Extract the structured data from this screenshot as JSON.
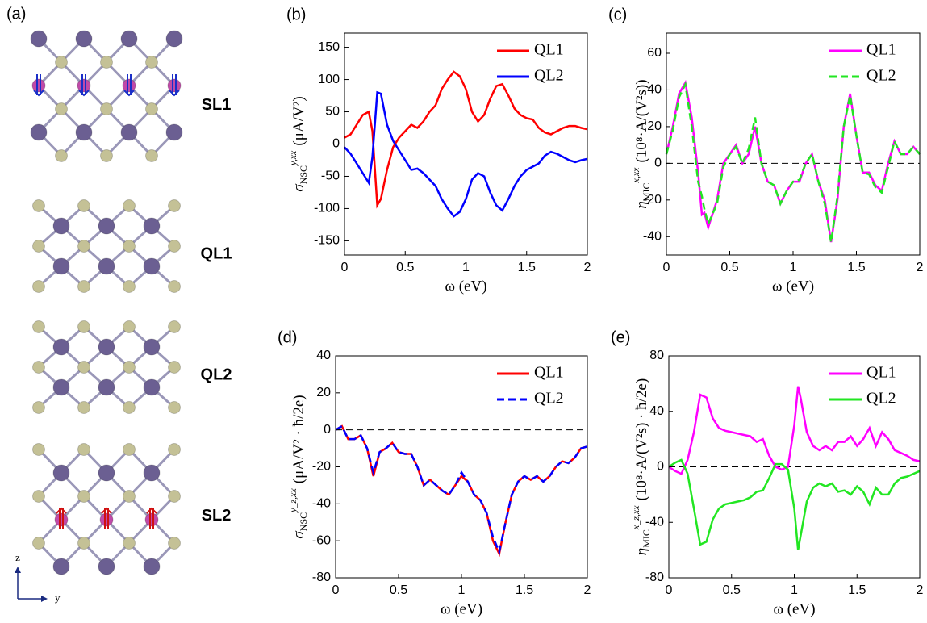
{
  "structure": {
    "panel_label": "(a)",
    "layers": [
      "SL1",
      "QL1",
      "QL2",
      "SL2"
    ],
    "axes": [
      "z",
      "y"
    ]
  },
  "chart_data": [
    {
      "type": "line",
      "label": "(b)",
      "xlabel": "ω (eV)",
      "ylabel": {
        "symbol": "σ",
        "sub": "NSC",
        "sup": "y,xx",
        "unit": "(μA/V²)"
      },
      "x": [
        0,
        0.05,
        0.1,
        0.15,
        0.2,
        0.23,
        0.27,
        0.3,
        0.35,
        0.4,
        0.45,
        0.5,
        0.55,
        0.6,
        0.65,
        0.7,
        0.75,
        0.8,
        0.85,
        0.9,
        0.95,
        1,
        1.05,
        1.1,
        1.15,
        1.2,
        1.25,
        1.3,
        1.35,
        1.4,
        1.45,
        1.5,
        1.55,
        1.6,
        1.65,
        1.7,
        1.75,
        1.8,
        1.85,
        1.9,
        1.95,
        2
      ],
      "series": [
        {
          "name": "QL1",
          "color": "#ff0000",
          "dash": false,
          "values": [
            10,
            15,
            30,
            45,
            50,
            20,
            -95,
            -85,
            -40,
            -5,
            10,
            20,
            30,
            25,
            35,
            50,
            60,
            85,
            100,
            112,
            105,
            85,
            50,
            35,
            45,
            70,
            90,
            93,
            75,
            55,
            45,
            40,
            38,
            25,
            18,
            15,
            20,
            25,
            28,
            28,
            25,
            23
          ]
        },
        {
          "name": "QL2",
          "color": "#0000ff",
          "dash": false,
          "values": [
            -5,
            -15,
            -30,
            -45,
            -60,
            -20,
            80,
            78,
            30,
            5,
            -10,
            -25,
            -40,
            -38,
            -45,
            -55,
            -65,
            -85,
            -100,
            -112,
            -105,
            -85,
            -55,
            -45,
            -50,
            -75,
            -95,
            -103,
            -85,
            -65,
            -50,
            -40,
            -35,
            -30,
            -18,
            -12,
            -15,
            -20,
            -25,
            -28,
            -25,
            -23
          ]
        }
      ],
      "xlim": [
        0,
        2
      ],
      "xticks": [
        0,
        0.5,
        1,
        1.5,
        2
      ],
      "ylim": [
        -172,
        172
      ],
      "yticks": [
        -150,
        -100,
        -50,
        0,
        50,
        100,
        150
      ],
      "zero_line": true,
      "legend": "upper right"
    },
    {
      "type": "line",
      "label": "(c)",
      "xlabel": "ω (eV)",
      "ylabel": {
        "symbol": "η",
        "sub": "MIC",
        "sup": "x,xx",
        "unit": "(10⁸·A/(V²s))"
      },
      "x": [
        0,
        0.05,
        0.1,
        0.15,
        0.2,
        0.25,
        0.28,
        0.3,
        0.33,
        0.4,
        0.45,
        0.5,
        0.55,
        0.6,
        0.65,
        0.7,
        0.75,
        0.8,
        0.85,
        0.9,
        0.95,
        1,
        1.05,
        1.1,
        1.15,
        1.2,
        1.25,
        1.3,
        1.35,
        1.4,
        1.45,
        1.5,
        1.55,
        1.6,
        1.65,
        1.7,
        1.75,
        1.8,
        1.85,
        1.9,
        1.95,
        2
      ],
      "series": [
        {
          "name": "QL1",
          "color": "#ff00ff",
          "dash": false,
          "values": [
            5,
            20,
            38,
            44,
            25,
            -5,
            -28,
            -27,
            -35,
            -20,
            0,
            5,
            10,
            0,
            5,
            20,
            0,
            -10,
            -12,
            -22,
            -15,
            -10,
            -10,
            0,
            5,
            -10,
            -20,
            -43,
            -20,
            20,
            38,
            15,
            -5,
            -5,
            -12,
            -15,
            0,
            12,
            5,
            5,
            9,
            5
          ]
        },
        {
          "name": "QL2",
          "color": "#22e622",
          "dash": true,
          "values": [
            5,
            18,
            36,
            43,
            20,
            -10,
            -18,
            -25,
            -33,
            -22,
            -2,
            5,
            9,
            0,
            8,
            25,
            0,
            -10,
            -12,
            -22,
            -15,
            -10,
            -9,
            0,
            5,
            -10,
            -22,
            -43,
            -18,
            20,
            37,
            15,
            -5,
            -6,
            -13,
            -16,
            -2,
            12,
            5,
            5,
            9,
            5
          ]
        }
      ],
      "xlim": [
        0,
        2
      ],
      "xticks": [
        0,
        0.5,
        1,
        1.5,
        2
      ],
      "ylim": [
        -50,
        71
      ],
      "yticks": [
        -40,
        -20,
        0,
        20,
        40,
        60
      ],
      "zero_line": true,
      "legend": "upper right"
    },
    {
      "type": "line",
      "label": "(d)",
      "xlabel": "ω (eV)",
      "ylabel": {
        "symbol": "σ",
        "sub": "NSC",
        "sup": "y_z,xx",
        "unit": "(μA/V² · ħ/2e)"
      },
      "x": [
        0,
        0.05,
        0.1,
        0.15,
        0.2,
        0.25,
        0.3,
        0.35,
        0.4,
        0.45,
        0.5,
        0.55,
        0.6,
        0.65,
        0.7,
        0.75,
        0.8,
        0.85,
        0.9,
        0.95,
        1,
        1.05,
        1.1,
        1.15,
        1.2,
        1.25,
        1.3,
        1.35,
        1.4,
        1.45,
        1.5,
        1.55,
        1.6,
        1.65,
        1.7,
        1.75,
        1.8,
        1.85,
        1.9,
        1.95,
        2
      ],
      "series": [
        {
          "name": "QL1",
          "color": "#ff0000",
          "dash": false,
          "values": [
            0,
            2,
            -5,
            -5,
            -3,
            -10,
            -25,
            -12,
            -10,
            -7,
            -12,
            -13,
            -13,
            -20,
            -30,
            -27,
            -30,
            -33,
            -35,
            -30,
            -25,
            -28,
            -35,
            -38,
            -45,
            -60,
            -67,
            -50,
            -35,
            -28,
            -25,
            -27,
            -25,
            -28,
            -25,
            -20,
            -17,
            -18,
            -15,
            -10,
            -9
          ]
        },
        {
          "name": "QL2",
          "color": "#0000ff",
          "dash": true,
          "values": [
            0,
            2,
            -5,
            -5,
            -3,
            -10,
            -23,
            -12,
            -10,
            -7,
            -12,
            -13,
            -13,
            -20,
            -30,
            -27,
            -30,
            -33,
            -35,
            -30,
            -23,
            -28,
            -35,
            -38,
            -45,
            -58,
            -66,
            -50,
            -35,
            -28,
            -25,
            -27,
            -25,
            -28,
            -25,
            -20,
            -17,
            -18,
            -15,
            -10,
            -9
          ]
        }
      ],
      "xlim": [
        0,
        2
      ],
      "xticks": [
        0,
        0.5,
        1,
        1.5,
        2
      ],
      "ylim": [
        -80,
        40
      ],
      "yticks": [
        -80,
        -60,
        -40,
        -20,
        0,
        20,
        40
      ],
      "zero_line": true,
      "legend": "upper right"
    },
    {
      "type": "line",
      "label": "(e)",
      "xlabel": "ω (eV)",
      "ylabel": {
        "symbol": "η",
        "sub": "MIC",
        "sup": "x_z,xx",
        "unit": "(10⁸·A/(V²s) · ħ/2e)"
      },
      "x": [
        0,
        0.05,
        0.1,
        0.15,
        0.2,
        0.25,
        0.3,
        0.35,
        0.4,
        0.45,
        0.5,
        0.55,
        0.6,
        0.65,
        0.7,
        0.75,
        0.8,
        0.85,
        0.9,
        0.95,
        1,
        1.03,
        1.05,
        1.1,
        1.15,
        1.2,
        1.25,
        1.3,
        1.35,
        1.4,
        1.45,
        1.5,
        1.55,
        1.6,
        1.65,
        1.7,
        1.75,
        1.8,
        1.85,
        1.9,
        1.95,
        2
      ],
      "series": [
        {
          "name": "QL1",
          "color": "#ff00ff",
          "dash": false,
          "values": [
            0,
            -3,
            -5,
            5,
            25,
            52,
            50,
            35,
            28,
            26,
            25,
            24,
            23,
            22,
            18,
            20,
            8,
            0,
            -2,
            0,
            30,
            58,
            50,
            25,
            15,
            12,
            15,
            12,
            18,
            18,
            22,
            15,
            20,
            28,
            15,
            25,
            20,
            12,
            10,
            8,
            5,
            4
          ]
        },
        {
          "name": "QL2",
          "color": "#22e622",
          "dash": false,
          "values": [
            0,
            3,
            5,
            -5,
            -30,
            -56,
            -54,
            -38,
            -30,
            -27,
            -26,
            -25,
            -24,
            -22,
            -18,
            -17,
            -8,
            2,
            2,
            -2,
            -30,
            -60,
            -50,
            -25,
            -15,
            -12,
            -14,
            -12,
            -18,
            -17,
            -20,
            -14,
            -18,
            -27,
            -15,
            -20,
            -20,
            -12,
            -8,
            -7,
            -5,
            -3
          ]
        }
      ],
      "xlim": [
        0,
        2
      ],
      "xticks": [
        0,
        0.5,
        1,
        1.5,
        2
      ],
      "ylim": [
        -80,
        80
      ],
      "yticks": [
        -80,
        -40,
        0,
        40,
        80
      ],
      "zero_line": true,
      "legend": "upper right"
    }
  ]
}
